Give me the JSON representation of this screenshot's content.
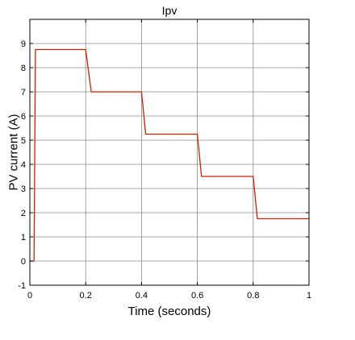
{
  "chart_data": {
    "type": "line",
    "title": "Ipv",
    "xlabel": "Time (seconds)",
    "ylabel": "PV current (A)",
    "xlim": [
      0,
      1
    ],
    "ylim": [
      -1,
      10
    ],
    "x_ticks": [
      0,
      0.2,
      0.4,
      0.6,
      0.8,
      1
    ],
    "x_tick_labels": [
      "0",
      "0.2",
      "0.4",
      "0.6",
      "0.8",
      "1"
    ],
    "y_ticks": [
      -1,
      0,
      1,
      2,
      3,
      4,
      5,
      6,
      7,
      8,
      9
    ],
    "y_tick_labels": [
      "-1",
      "0",
      "1",
      "2",
      "3",
      "4",
      "5",
      "6",
      "7",
      "8",
      "9"
    ],
    "grid": true,
    "legend": false,
    "series": [
      {
        "color": "#cc2200",
        "x": [
          0,
          0.015,
          0.02,
          0.2,
          0.22,
          0.4,
          0.415,
          0.6,
          0.615,
          0.8,
          0.815,
          1.0
        ],
        "y": [
          0,
          0,
          8.75,
          8.75,
          7.0,
          7.0,
          5.25,
          5.25,
          3.5,
          3.5,
          1.75,
          1.75
        ]
      }
    ]
  }
}
